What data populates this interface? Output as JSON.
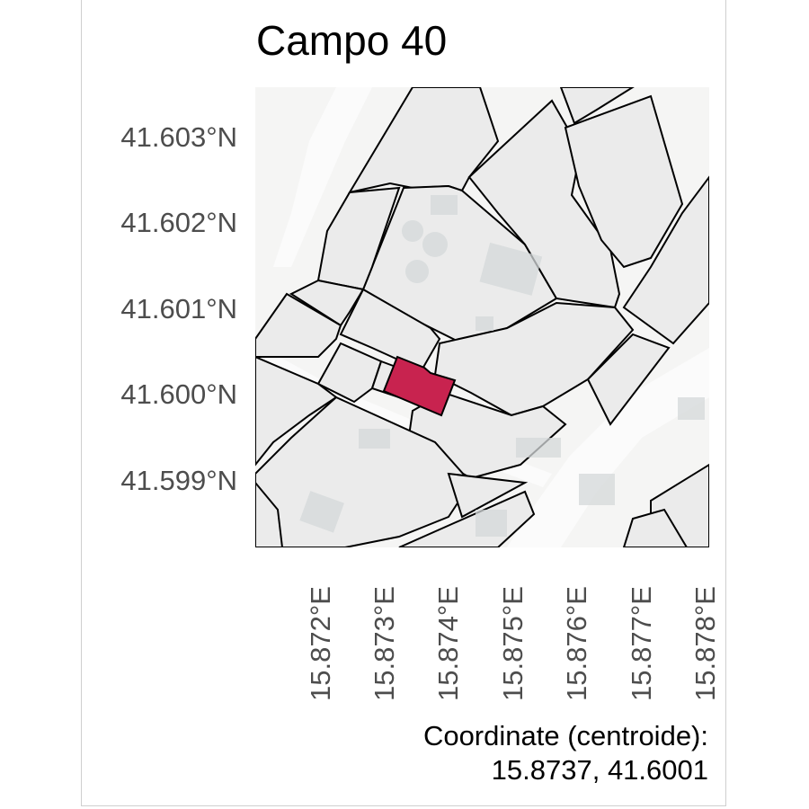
{
  "title": "Campo 40",
  "y_ticks": [
    "41.603°N",
    "41.602°N",
    "41.601°N",
    "41.600°N",
    "41.599°N"
  ],
  "x_ticks": [
    "15.872°E",
    "15.873°E",
    "15.874°E",
    "15.875°E",
    "15.876°E",
    "15.877°E",
    "15.878°E"
  ],
  "caption": {
    "line1": "Coordinate (centroide):",
    "line2": "15.8737, 41.6001"
  },
  "centroid": {
    "lon": 15.8737,
    "lat": 41.6001
  },
  "colors": {
    "highlight": "#c8234f",
    "parcel": "#ebebeb",
    "basemap": "#f5f5f4",
    "building": "#d4d9da",
    "road": "#fbfbfb",
    "outline": "#000000"
  }
}
